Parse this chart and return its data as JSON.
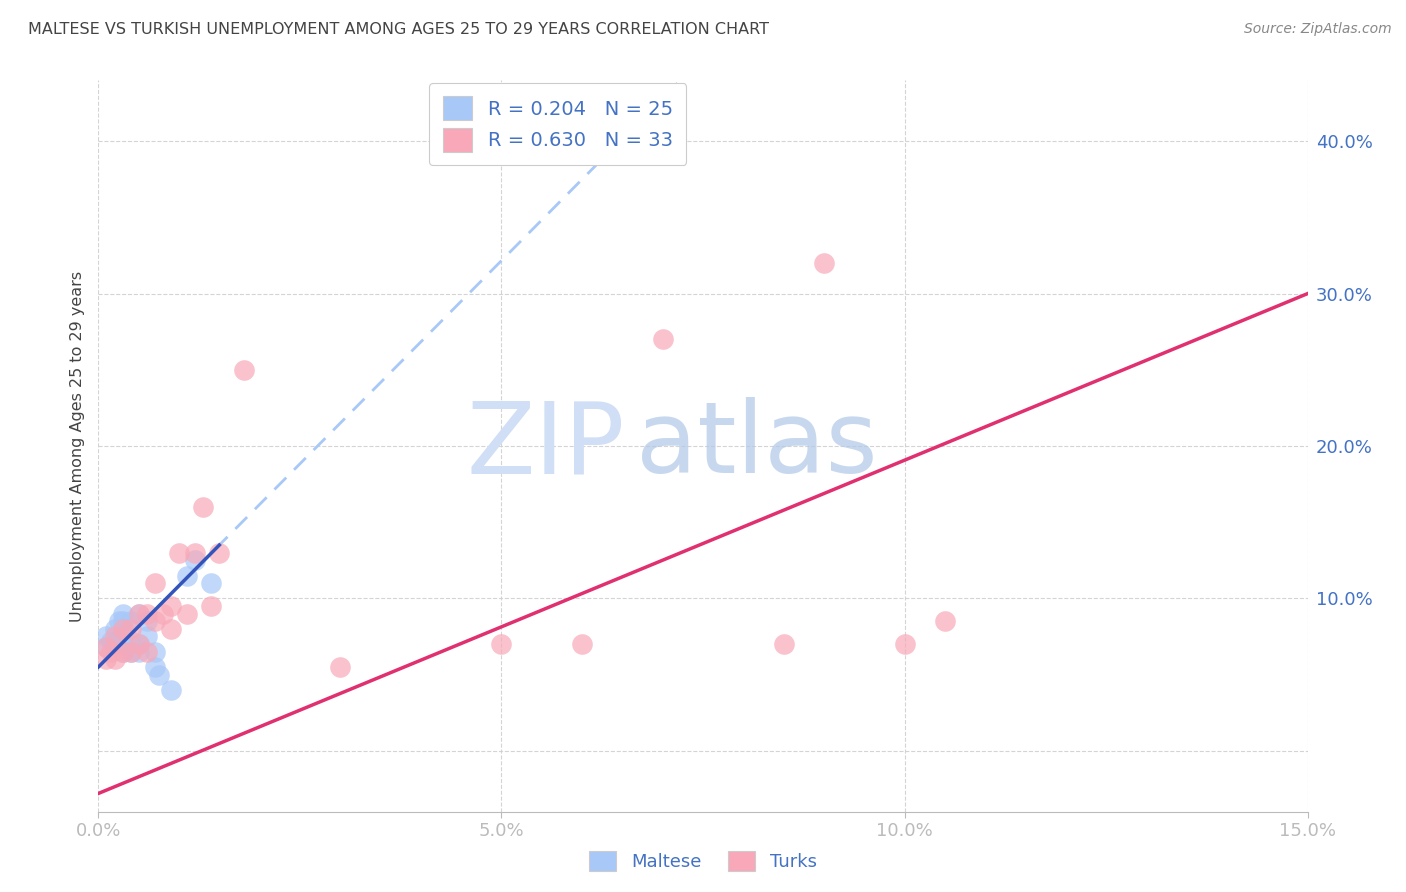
{
  "title": "MALTESE VS TURKISH UNEMPLOYMENT AMONG AGES 25 TO 29 YEARS CORRELATION CHART",
  "source": "Source: ZipAtlas.com",
  "ylabel": "Unemployment Among Ages 25 to 29 years",
  "xlim": [
    0.0,
    0.15
  ],
  "ylim": [
    -0.04,
    0.44
  ],
  "xticks": [
    0.0,
    0.05,
    0.1,
    0.15
  ],
  "xtick_labels": [
    "0.0%",
    "5.0%",
    "10.0%",
    "15.0%"
  ],
  "yticks": [
    0.0,
    0.1,
    0.2,
    0.3,
    0.4
  ],
  "ytick_labels": [
    "",
    "10.0%",
    "20.0%",
    "30.0%",
    "40.0%"
  ],
  "maltese_color": "#a8c8f8",
  "turks_color": "#f8a8b8",
  "maltese_line_color": "#3355bb",
  "turks_line_color": "#e03070",
  "maltese_R": 0.204,
  "maltese_N": 25,
  "turks_R": 0.63,
  "turks_N": 33,
  "maltese_x": [
    0.001,
    0.001,
    0.0015,
    0.002,
    0.002,
    0.0025,
    0.003,
    0.003,
    0.003,
    0.003,
    0.004,
    0.004,
    0.004,
    0.005,
    0.005,
    0.005,
    0.006,
    0.006,
    0.007,
    0.007,
    0.0075,
    0.009,
    0.011,
    0.012,
    0.014
  ],
  "maltese_y": [
    0.075,
    0.068,
    0.072,
    0.08,
    0.07,
    0.085,
    0.09,
    0.085,
    0.075,
    0.065,
    0.085,
    0.072,
    0.065,
    0.09,
    0.07,
    0.065,
    0.085,
    0.075,
    0.065,
    0.055,
    0.05,
    0.04,
    0.115,
    0.125,
    0.11
  ],
  "turks_x": [
    0.001,
    0.001,
    0.0015,
    0.002,
    0.002,
    0.003,
    0.003,
    0.004,
    0.004,
    0.005,
    0.005,
    0.006,
    0.006,
    0.007,
    0.007,
    0.008,
    0.009,
    0.009,
    0.01,
    0.011,
    0.012,
    0.013,
    0.014,
    0.015,
    0.018,
    0.03,
    0.05,
    0.06,
    0.07,
    0.085,
    0.09,
    0.1,
    0.105
  ],
  "turks_y": [
    0.068,
    0.06,
    0.065,
    0.075,
    0.06,
    0.08,
    0.065,
    0.08,
    0.065,
    0.09,
    0.07,
    0.09,
    0.065,
    0.11,
    0.085,
    0.09,
    0.095,
    0.08,
    0.13,
    0.09,
    0.13,
    0.16,
    0.095,
    0.13,
    0.25,
    0.055,
    0.07,
    0.07,
    0.27,
    0.07,
    0.32,
    0.07,
    0.085
  ],
  "turks_line_x0": 0.0,
  "turks_line_y0": -0.028,
  "turks_line_x1": 0.15,
  "turks_line_y1": 0.3,
  "maltese_line_x0": 0.0,
  "maltese_line_y0": 0.055,
  "maltese_line_x1": 0.015,
  "maltese_line_y1": 0.135,
  "background_color": "#ffffff",
  "grid_color": "#d0d0d0",
  "title_color": "#444444",
  "axis_label_color": "#444444",
  "tick_color": "#4472c4",
  "legend_color": "#4472c4",
  "watermark_zip_color": "#d0dff5",
  "watermark_atlas_color": "#b0c8e8"
}
